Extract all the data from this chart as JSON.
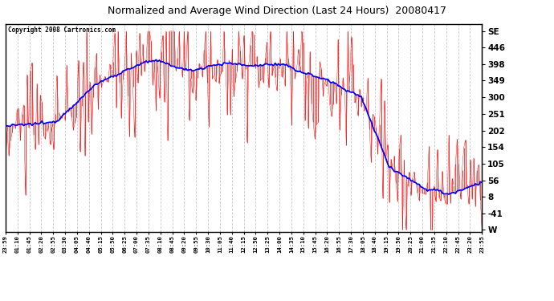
{
  "title": "Normalized and Average Wind Direction (Last 24 Hours)  20080417",
  "copyright": "Copyright 2008 Cartronics.com",
  "background_color": "#ffffff",
  "plot_bg_color": "#ffffff",
  "grid_color": "#c8c8c8",
  "raw_color": "#ff0000",
  "avg_color": "#0000ff",
  "right_labels": [
    "SE",
    "446",
    "398",
    "349",
    "300",
    "251",
    "202",
    "154",
    "105",
    "56",
    "8",
    "-41",
    "W"
  ],
  "right_values": [
    494,
    446,
    398,
    349,
    300,
    251,
    202,
    154,
    105,
    56,
    8,
    -41,
    -89
  ],
  "ylim": [
    -95,
    515
  ],
  "x_labels": [
    "23:59",
    "01:10",
    "01:45",
    "02:20",
    "02:55",
    "03:30",
    "04:05",
    "04:40",
    "05:15",
    "05:50",
    "06:25",
    "07:00",
    "07:35",
    "08:10",
    "08:45",
    "09:20",
    "09:55",
    "10:30",
    "11:05",
    "11:40",
    "12:15",
    "12:50",
    "13:25",
    "14:00",
    "14:35",
    "15:10",
    "15:45",
    "16:20",
    "16:55",
    "17:30",
    "18:05",
    "18:40",
    "19:15",
    "19:50",
    "20:25",
    "21:00",
    "21:35",
    "22:10",
    "22:45",
    "23:20",
    "23:55"
  ]
}
